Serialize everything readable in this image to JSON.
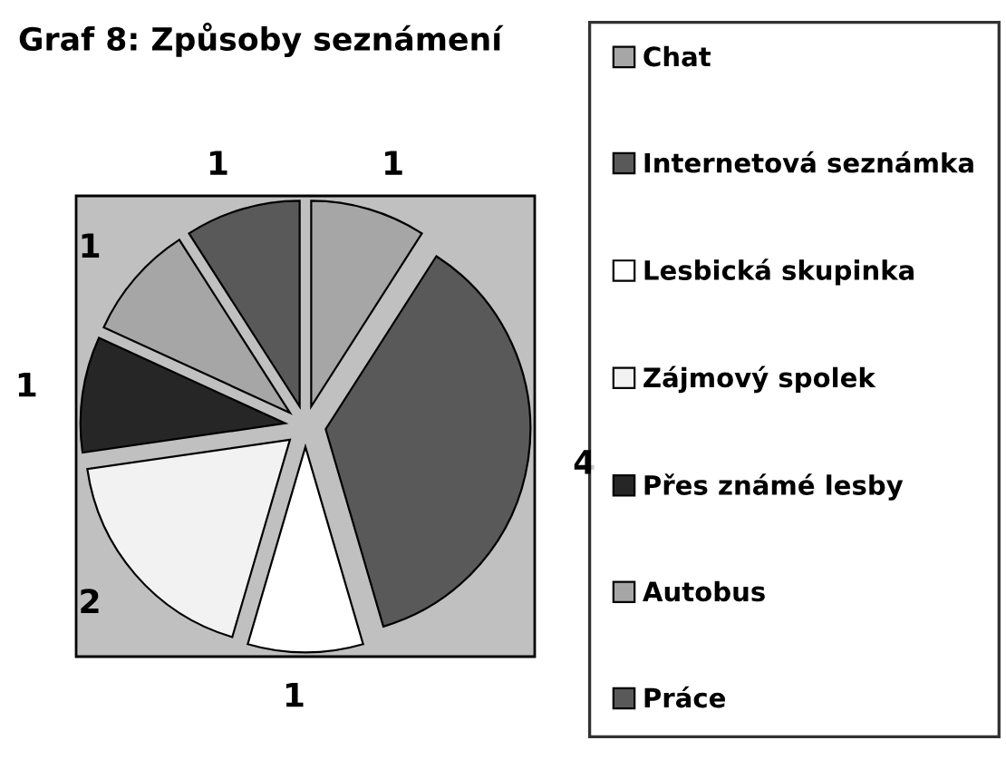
{
  "chart_data": {
    "type": "pie",
    "title": "Graf 8: Způsoby seznámení",
    "categories": [
      "Chat",
      "Internetová seznámka",
      "Lesbická skupinka",
      "Zájmový spolek",
      "Přes známé lesby",
      "Autobus",
      "Práce"
    ],
    "values": [
      1,
      4,
      1,
      2,
      1,
      1,
      1
    ],
    "colors": [
      "#a6a6a6",
      "#595959",
      "#ffffff",
      "#f2f2f2",
      "#262626",
      "#a6a6a6",
      "#595959"
    ],
    "data_labels": true,
    "legend": "right"
  }
}
